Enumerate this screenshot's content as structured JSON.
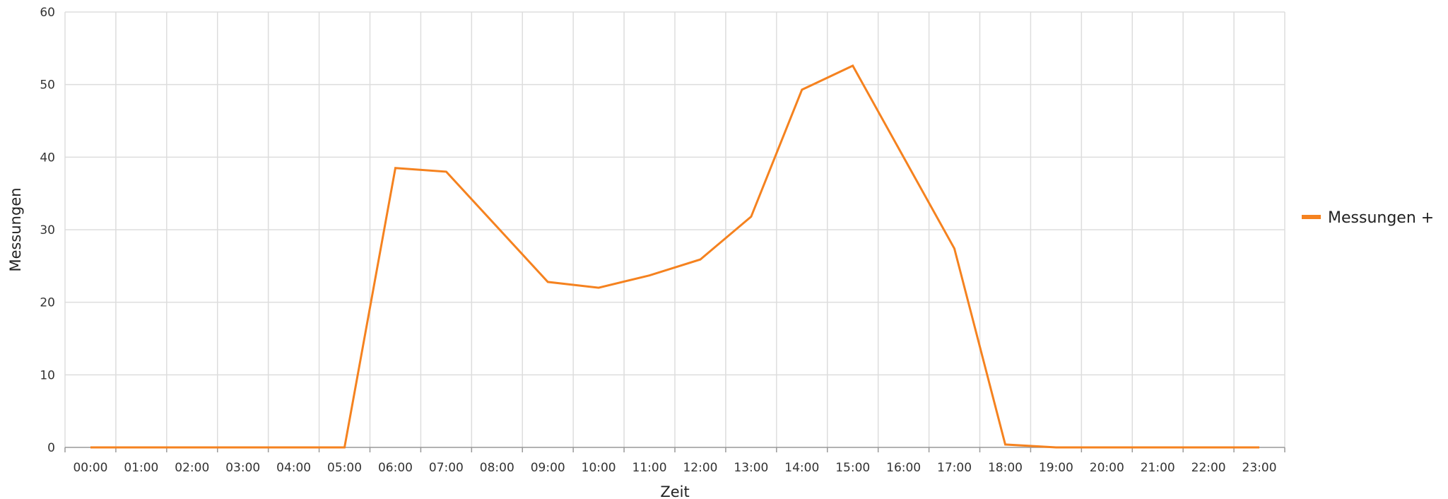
{
  "chart_data": {
    "type": "line",
    "xlabel": "Zeit",
    "ylabel": "Messungen",
    "ylim": [
      0,
      60
    ],
    "yticks": [
      0,
      10,
      20,
      30,
      40,
      50,
      60
    ],
    "categories": [
      "00:00",
      "01:00",
      "02:00",
      "03:00",
      "04:00",
      "05:00",
      "06:00",
      "07:00",
      "08:00",
      "09:00",
      "10:00",
      "11:00",
      "12:00",
      "13:00",
      "14:00",
      "15:00",
      "16:00",
      "17:00",
      "18:00",
      "19:00",
      "20:00",
      "21:00",
      "22:00",
      "23:00"
    ],
    "grid": true,
    "legend_position": "right",
    "series": [
      {
        "name": "Messungen +",
        "color": "#f5821f",
        "points": [
          {
            "x": "00:00",
            "y": 0
          },
          {
            "x": "01:00",
            "y": 0
          },
          {
            "x": "02:00",
            "y": 0
          },
          {
            "x": "03:00",
            "y": 0
          },
          {
            "x": "04:00",
            "y": 0
          },
          {
            "x": "05:00",
            "y": 0
          },
          {
            "x": "06:00",
            "y": 38.5
          },
          {
            "x": "07:00",
            "y": 38.0
          },
          {
            "x": "09:00",
            "y": 22.8
          },
          {
            "x": "10:00",
            "y": 22.0
          },
          {
            "x": "11:00",
            "y": 23.7
          },
          {
            "x": "12:00",
            "y": 25.9
          },
          {
            "x": "13:00",
            "y": 31.8
          },
          {
            "x": "14:00",
            "y": 49.3
          },
          {
            "x": "15:00",
            "y": 52.6
          },
          {
            "x": "17:00",
            "y": 27.4
          },
          {
            "x": "18:00",
            "y": 0.4
          },
          {
            "x": "19:00",
            "y": 0
          },
          {
            "x": "20:00",
            "y": 0
          },
          {
            "x": "21:00",
            "y": 0
          },
          {
            "x": "22:00",
            "y": 0
          },
          {
            "x": "23:00",
            "y": 0
          }
        ]
      }
    ]
  }
}
